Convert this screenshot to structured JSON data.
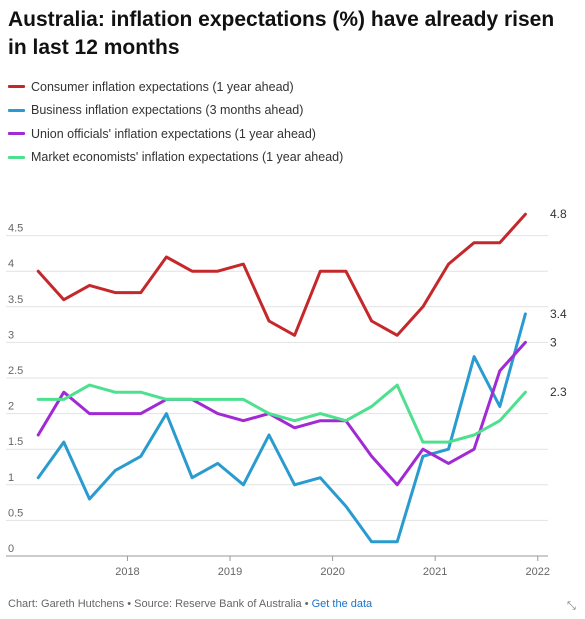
{
  "title": "Australia: inflation expectations (%) have already risen in last 12 months",
  "chart_data": {
    "type": "line",
    "title": "Australia: inflation expectations (%) have already risen in last 12 months",
    "x": [
      2017.13,
      2017.38,
      2017.63,
      2017.88,
      2018.13,
      2018.38,
      2018.63,
      2018.88,
      2019.13,
      2019.38,
      2019.63,
      2019.88,
      2020.13,
      2020.38,
      2020.63,
      2020.88,
      2021.13,
      2021.38,
      2021.63,
      2021.88
    ],
    "x_ticks": [
      2018,
      2019,
      2020,
      2021,
      2022
    ],
    "xlim": [
      2017.05,
      2022.1
    ],
    "y_ticks": [
      0,
      0.5,
      1,
      1.5,
      2,
      2.5,
      3,
      3.5,
      4,
      4.5
    ],
    "ylim": [
      0,
      5
    ],
    "grid": true,
    "legend_position": "top-left",
    "series": [
      {
        "name": "Consumer inflation expectations (1 year ahead)",
        "color": "#c5282b",
        "end_label": "4.8",
        "values": [
          4.0,
          3.6,
          3.8,
          3.7,
          3.7,
          4.2,
          4.0,
          4.0,
          4.1,
          3.3,
          3.1,
          4.0,
          4.0,
          3.3,
          3.1,
          3.5,
          4.1,
          4.4,
          4.4,
          4.8
        ]
      },
      {
        "name": "Business inflation expectations (3 months ahead)",
        "color": "#2a9bcf",
        "end_label": "3.4",
        "values": [
          1.1,
          1.6,
          0.8,
          1.2,
          1.4,
          2.0,
          1.1,
          1.3,
          1.0,
          1.7,
          1.0,
          1.1,
          0.7,
          0.2,
          0.2,
          1.4,
          1.5,
          2.8,
          2.1,
          3.4
        ]
      },
      {
        "name": "Union officials' inflation expectations (1 year ahead)",
        "color": "#a12ad4",
        "end_label": "3",
        "values": [
          1.7,
          2.3,
          2.0,
          2.0,
          2.0,
          2.2,
          2.2,
          2.0,
          1.9,
          2.0,
          1.8,
          1.9,
          1.9,
          1.4,
          1.0,
          1.5,
          1.3,
          1.5,
          2.6,
          3.0
        ]
      },
      {
        "name": "Market economists' inflation expectations (1 year ahead)",
        "color": "#4de08e",
        "end_label": "2.3",
        "values": [
          2.2,
          2.2,
          2.4,
          2.3,
          2.3,
          2.2,
          2.2,
          2.2,
          2.2,
          2.0,
          1.9,
          2.0,
          1.9,
          2.1,
          2.4,
          1.6,
          1.6,
          1.7,
          1.9,
          2.3
        ]
      }
    ]
  },
  "footer": {
    "credit": "Chart: Gareth Hutchens • Source: Reserve Bank of Australia • ",
    "link": "Get the data"
  },
  "icons": {
    "expand": "expand-arrows-icon"
  }
}
